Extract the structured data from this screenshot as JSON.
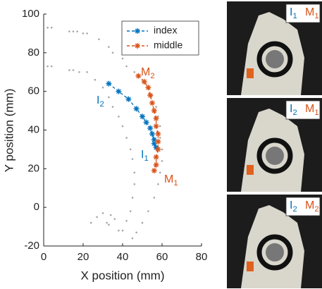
{
  "chart_data": {
    "type": "line",
    "xlabel": "X position (mm)",
    "ylabel": "Y position (mm)",
    "xlim": [
      0,
      80
    ],
    "xticks": [
      0,
      20,
      40,
      60,
      80
    ],
    "ylim": [
      -20,
      100
    ],
    "yticks": [
      -20,
      0,
      20,
      40,
      60,
      80,
      100
    ],
    "legend": "upper right",
    "series": [
      {
        "name": "index",
        "color": "#0072bd",
        "x": [
          33,
          38,
          43,
          47,
          50,
          52,
          54,
          55,
          56,
          56,
          57
        ],
        "values": [
          64,
          60,
          56,
          51,
          47,
          44,
          41,
          38,
          35,
          33,
          31
        ]
      },
      {
        "name": "middle",
        "color": "#d95319",
        "x": [
          48,
          51,
          53,
          54,
          55,
          56,
          57,
          57,
          58,
          58,
          58,
          57,
          57,
          56
        ],
        "values": [
          68,
          65,
          62,
          58,
          54,
          50,
          46,
          42,
          38,
          34,
          30,
          26,
          22,
          19
        ]
      }
    ],
    "background_points": {
      "color": "#a6a6a6",
      "x": [
        2,
        4,
        13,
        15,
        17,
        20,
        22,
        28,
        33,
        35,
        40,
        42,
        46,
        50,
        53,
        55,
        57,
        58,
        59,
        59,
        60,
        60,
        59,
        58,
        56,
        53,
        50,
        47,
        45,
        2,
        4,
        13,
        15,
        18,
        22,
        26,
        30,
        33,
        35,
        38,
        40,
        42,
        44,
        45,
        46,
        46,
        45,
        44,
        42,
        40,
        24,
        27,
        30,
        32,
        34,
        38,
        36,
        33
      ],
      "y": [
        93,
        93,
        91,
        91,
        91,
        90,
        90,
        87,
        83,
        80,
        77,
        73,
        70,
        66,
        62,
        58,
        52,
        47,
        42,
        36,
        30,
        24,
        18,
        12,
        5,
        -2,
        -8,
        -13,
        -16,
        73,
        73,
        71,
        71,
        70,
        70,
        66,
        62,
        57,
        52,
        47,
        42,
        36,
        30,
        25,
        18,
        12,
        5,
        -2,
        -7,
        -12,
        -8,
        -5,
        -3,
        -8,
        -4,
        -12,
        -6,
        -9
      ]
    },
    "annotations": [
      {
        "text": "I",
        "sub": "2",
        "color": "#0072bd"
      },
      {
        "text": "M",
        "sub": "2",
        "color": "#d95319"
      },
      {
        "text": "I",
        "sub": "1",
        "color": "#0072bd"
      },
      {
        "text": "M",
        "sub": "1",
        "color": "#d95319"
      }
    ]
  },
  "photos": [
    {
      "labels": [
        {
          "text": "I",
          "sub": "1",
          "color": "#0072bd"
        },
        {
          "text": "M",
          "sub": "1",
          "color": "#d95319"
        }
      ]
    },
    {
      "labels": [
        {
          "text": "I",
          "sub": "2",
          "color": "#0072bd"
        },
        {
          "text": "M",
          "sub": "1",
          "color": "#d95319"
        }
      ]
    },
    {
      "labels": [
        {
          "text": "I",
          "sub": "2",
          "color": "#0072bd"
        },
        {
          "text": "M",
          "sub": "2",
          "color": "#d95319"
        }
      ]
    }
  ]
}
